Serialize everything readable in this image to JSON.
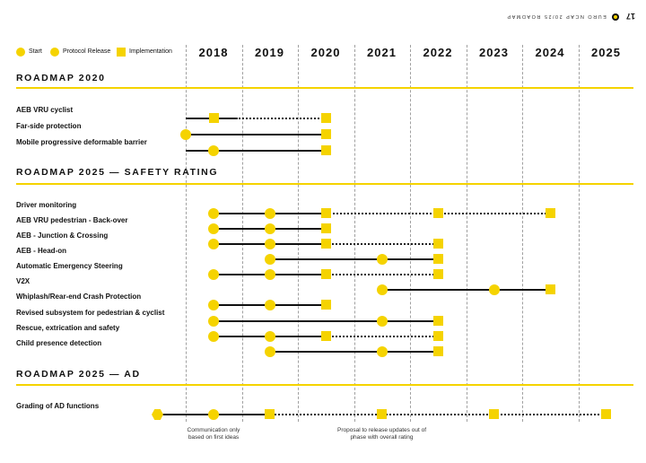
{
  "header": {
    "brand": "EURO NCAP 20/25 ROADMAP",
    "page_number": "17",
    "logo_icon": "euro-ncap-logo-icon"
  },
  "legend": [
    {
      "symbol": "circle",
      "label": "Start"
    },
    {
      "symbol": "circle",
      "label": "Protocol Release"
    },
    {
      "symbol": "square",
      "label": "Implementation"
    }
  ],
  "years": [
    "2018",
    "2019",
    "2020",
    "2021",
    "2022",
    "2023",
    "2024",
    "2025"
  ],
  "colors": {
    "accent": "#f5d300",
    "line": "#111111"
  },
  "sections": [
    {
      "title": "ROADMAP 2020",
      "rows": [
        {
          "label": "AEB VRU cyclist",
          "segments": [
            {
              "from": 2017.5,
              "to": 2018.4,
              "style": "solid"
            },
            {
              "from": 2018.4,
              "to": 2020,
              "style": "dotted"
            }
          ],
          "markers": [
            {
              "at": 2018,
              "type": "square"
            },
            {
              "at": 2020,
              "type": "square"
            }
          ]
        },
        {
          "label": "Far-side protection",
          "segments": [
            {
              "from": 2017.5,
              "to": 2020,
              "style": "solid"
            }
          ],
          "markers": [
            {
              "at": 2017.5,
              "type": "circle"
            },
            {
              "at": 2020,
              "type": "square"
            }
          ]
        },
        {
          "label": "Mobile progressive deformable barrier",
          "segments": [
            {
              "from": 2017.5,
              "to": 2020,
              "style": "solid"
            }
          ],
          "markers": [
            {
              "at": 2018,
              "type": "circle"
            },
            {
              "at": 2020,
              "type": "square"
            }
          ]
        }
      ]
    },
    {
      "title": "ROADMAP 2025 — SAFETY RATING",
      "rows": [
        {
          "label": "Driver monitoring",
          "segments": [
            {
              "from": 2018,
              "to": 2020,
              "style": "solid"
            },
            {
              "from": 2020,
              "to": 2024,
              "style": "dotted"
            }
          ],
          "markers": [
            {
              "at": 2018,
              "type": "circle"
            },
            {
              "at": 2019,
              "type": "circle"
            },
            {
              "at": 2020,
              "type": "square"
            },
            {
              "at": 2022,
              "type": "square"
            },
            {
              "at": 2024,
              "type": "square"
            }
          ]
        },
        {
          "label": "AEB VRU pedestrian - Back-over",
          "segments": [
            {
              "from": 2018,
              "to": 2020,
              "style": "solid"
            }
          ],
          "markers": [
            {
              "at": 2018,
              "type": "circle"
            },
            {
              "at": 2019,
              "type": "circle"
            },
            {
              "at": 2020,
              "type": "square"
            }
          ]
        },
        {
          "label": "AEB - Junction & Crossing",
          "segments": [
            {
              "from": 2018,
              "to": 2020,
              "style": "solid"
            },
            {
              "from": 2020,
              "to": 2022,
              "style": "dotted"
            }
          ],
          "markers": [
            {
              "at": 2018,
              "type": "circle"
            },
            {
              "at": 2019,
              "type": "circle"
            },
            {
              "at": 2020,
              "type": "square"
            },
            {
              "at": 2022,
              "type": "square"
            }
          ]
        },
        {
          "label": "AEB - Head-on",
          "segments": [
            {
              "from": 2019,
              "to": 2022,
              "style": "solid"
            }
          ],
          "markers": [
            {
              "at": 2019,
              "type": "circle"
            },
            {
              "at": 2021,
              "type": "circle"
            },
            {
              "at": 2022,
              "type": "square"
            }
          ]
        },
        {
          "label": "Automatic Emergency Steering",
          "segments": [
            {
              "from": 2018,
              "to": 2020,
              "style": "solid"
            },
            {
              "from": 2020,
              "to": 2022,
              "style": "dotted"
            }
          ],
          "markers": [
            {
              "at": 2018,
              "type": "circle"
            },
            {
              "at": 2019,
              "type": "circle"
            },
            {
              "at": 2020,
              "type": "square"
            },
            {
              "at": 2022,
              "type": "square"
            }
          ]
        },
        {
          "label": "V2X",
          "segments": [
            {
              "from": 2021,
              "to": 2024,
              "style": "solid"
            }
          ],
          "markers": [
            {
              "at": 2021,
              "type": "circle"
            },
            {
              "at": 2023,
              "type": "circle"
            },
            {
              "at": 2024,
              "type": "square"
            }
          ]
        },
        {
          "label": "Whiplash/Rear-end Crash Protection",
          "segments": [
            {
              "from": 2018,
              "to": 2020,
              "style": "solid"
            }
          ],
          "markers": [
            {
              "at": 2018,
              "type": "circle"
            },
            {
              "at": 2019,
              "type": "circle"
            },
            {
              "at": 2020,
              "type": "square"
            }
          ]
        },
        {
          "label": "Revised subsystem for pedestrian & cyclist",
          "segments": [
            {
              "from": 2018,
              "to": 2022,
              "style": "solid"
            }
          ],
          "markers": [
            {
              "at": 2018,
              "type": "circle"
            },
            {
              "at": 2021,
              "type": "circle"
            },
            {
              "at": 2022,
              "type": "square"
            }
          ]
        },
        {
          "label": "Rescue, extrication and safety",
          "segments": [
            {
              "from": 2018,
              "to": 2020,
              "style": "solid"
            },
            {
              "from": 2020,
              "to": 2022,
              "style": "dotted"
            }
          ],
          "markers": [
            {
              "at": 2018,
              "type": "circle"
            },
            {
              "at": 2019,
              "type": "circle"
            },
            {
              "at": 2020,
              "type": "square"
            },
            {
              "at": 2022,
              "type": "square"
            }
          ]
        },
        {
          "label": "Child presence detection",
          "segments": [
            {
              "from": 2019,
              "to": 2022,
              "style": "solid"
            }
          ],
          "markers": [
            {
              "at": 2019,
              "type": "circle"
            },
            {
              "at": 2021,
              "type": "circle"
            },
            {
              "at": 2022,
              "type": "square"
            }
          ]
        }
      ]
    },
    {
      "title": "ROADMAP 2025 — AD",
      "rows": [
        {
          "label": "Grading of AD functions",
          "segments": [
            {
              "from": 2017,
              "to": 2019,
              "style": "solid"
            },
            {
              "from": 2019,
              "to": 2025,
              "style": "dotted"
            }
          ],
          "markers": [
            {
              "at": 2017,
              "type": "hex"
            },
            {
              "at": 2018,
              "type": "circle"
            },
            {
              "at": 2019,
              "type": "square"
            },
            {
              "at": 2021,
              "type": "square"
            },
            {
              "at": 2023,
              "type": "square"
            },
            {
              "at": 2025,
              "type": "square"
            }
          ]
        }
      ]
    }
  ],
  "notes": [
    {
      "text": "Communication only based on first ideas",
      "year": 2018
    },
    {
      "text": "Proposal to release updates out of phase with overall rating",
      "year": 2021
    }
  ]
}
